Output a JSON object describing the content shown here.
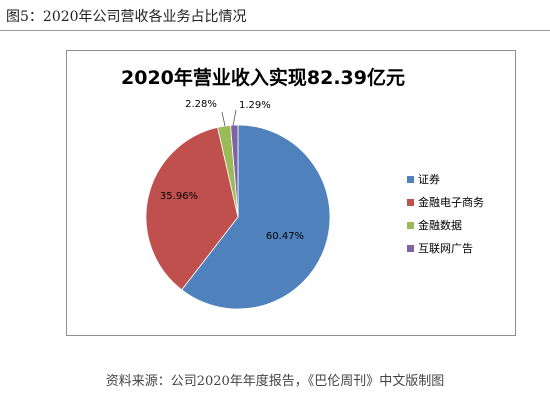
{
  "figure_caption": "图5：2020年公司营收各业务占比情况",
  "source_note": "资料来源：公司2020年年度报告，《巴伦周刊》中文版制图",
  "chart_data": {
    "type": "pie",
    "title": "2020年营业收入实现82.39亿元",
    "legend_position": "right",
    "slices": [
      {
        "label": "证券",
        "value": 60.47,
        "value_label": "60.47%",
        "color": "#4F81BD"
      },
      {
        "label": "金融电子商务",
        "value": 35.96,
        "value_label": "35.96%",
        "color": "#C0504D"
      },
      {
        "label": "金融数据",
        "value": 2.28,
        "value_label": "2.28%",
        "color": "#9BBB59"
      },
      {
        "label": "互联网广告",
        "value": 1.29,
        "value_label": "1.29%",
        "color": "#8064A2"
      }
    ]
  }
}
